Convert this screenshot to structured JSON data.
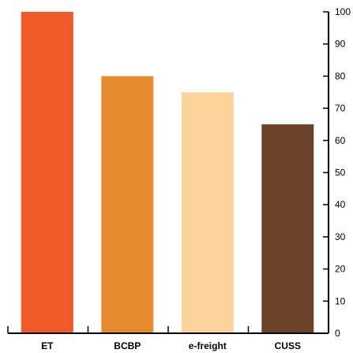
{
  "chart_data": {
    "type": "bar",
    "title": "",
    "xlabel": "",
    "ylabel": "",
    "categories": [
      "ET",
      "BCBP",
      "e-freight",
      "CUSS"
    ],
    "values": [
      100,
      80,
      75,
      65
    ],
    "colors": [
      "#f05a28",
      "#e68a2e",
      "#fcd49b",
      "#6b4328"
    ],
    "ylim": [
      0,
      100
    ],
    "yticks": [
      "0",
      "10",
      "20",
      "30",
      "40",
      "50",
      "60",
      "70",
      "80",
      "90",
      "100"
    ],
    "y_axis_side": "right",
    "grid": false,
    "legend": "none"
  }
}
